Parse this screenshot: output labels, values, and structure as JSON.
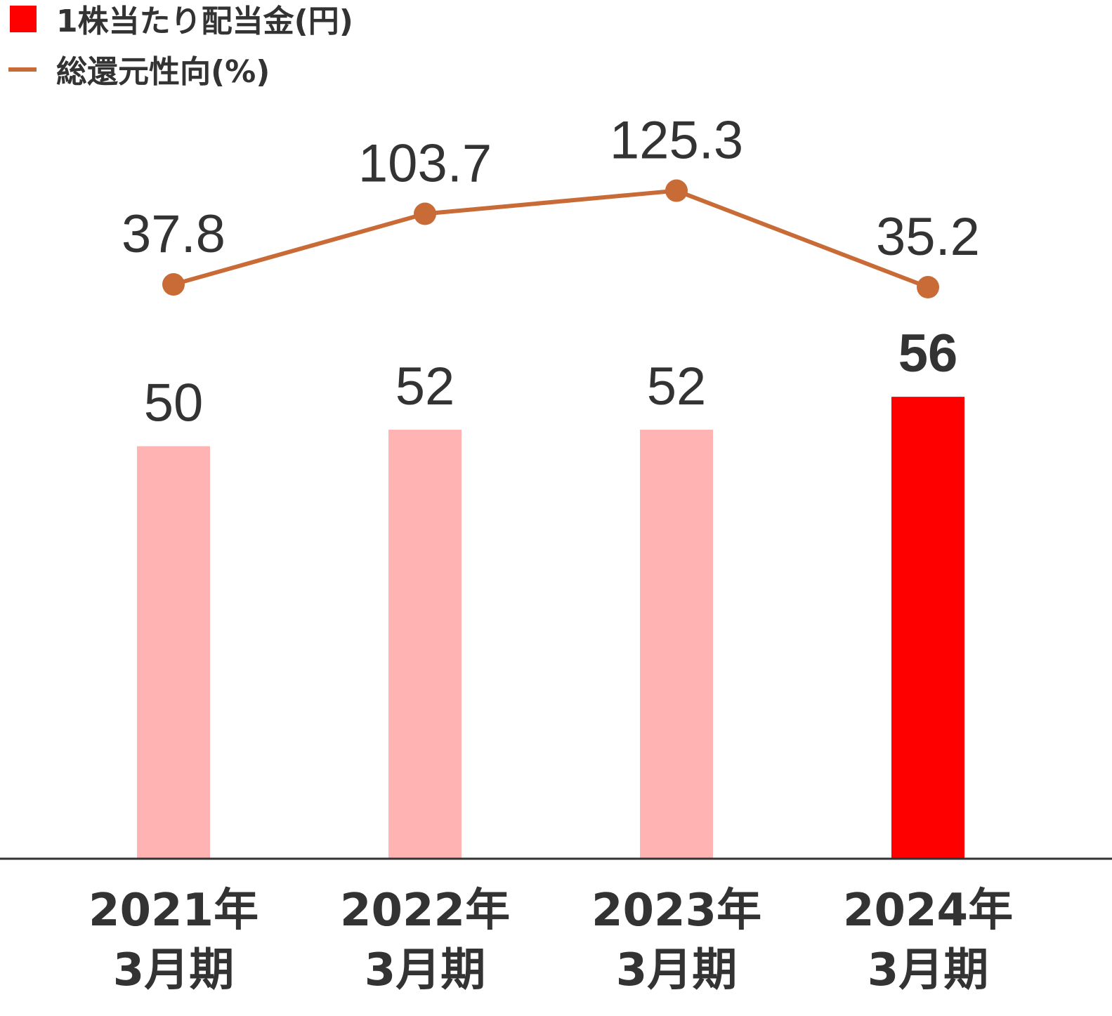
{
  "chart_data": {
    "type": "bar",
    "categories": [
      [
        "2021年",
        "3月期"
      ],
      [
        "2022年",
        "3月期"
      ],
      [
        "2023年",
        "3月期"
      ],
      [
        "2024年",
        "3月期"
      ]
    ],
    "series": [
      {
        "name": "1株当たり配当金(円)",
        "type": "bar",
        "values": [
          50,
          52,
          52,
          56
        ],
        "labels": [
          "50",
          "52",
          "52",
          "56"
        ],
        "colors": [
          "#ffb3b3",
          "#ffb3b3",
          "#ffb3b3",
          "#ff0000"
        ],
        "emphasis": [
          false,
          false,
          false,
          true
        ]
      },
      {
        "name": "総還元性向(%)",
        "type": "line",
        "values": [
          37.8,
          103.7,
          125.3,
          35.2
        ],
        "labels": [
          "37.8",
          "103.7",
          "125.3",
          "35.2"
        ],
        "color": "#c96b36"
      }
    ],
    "legend": {
      "position": "top-left",
      "items": [
        {
          "label": "1株当たり配当金(円)",
          "symbol": "square",
          "color": "#ff0000"
        },
        {
          "label": "総還元性向(%)",
          "symbol": "line",
          "color": "#c96b36"
        }
      ]
    },
    "grid": false
  }
}
